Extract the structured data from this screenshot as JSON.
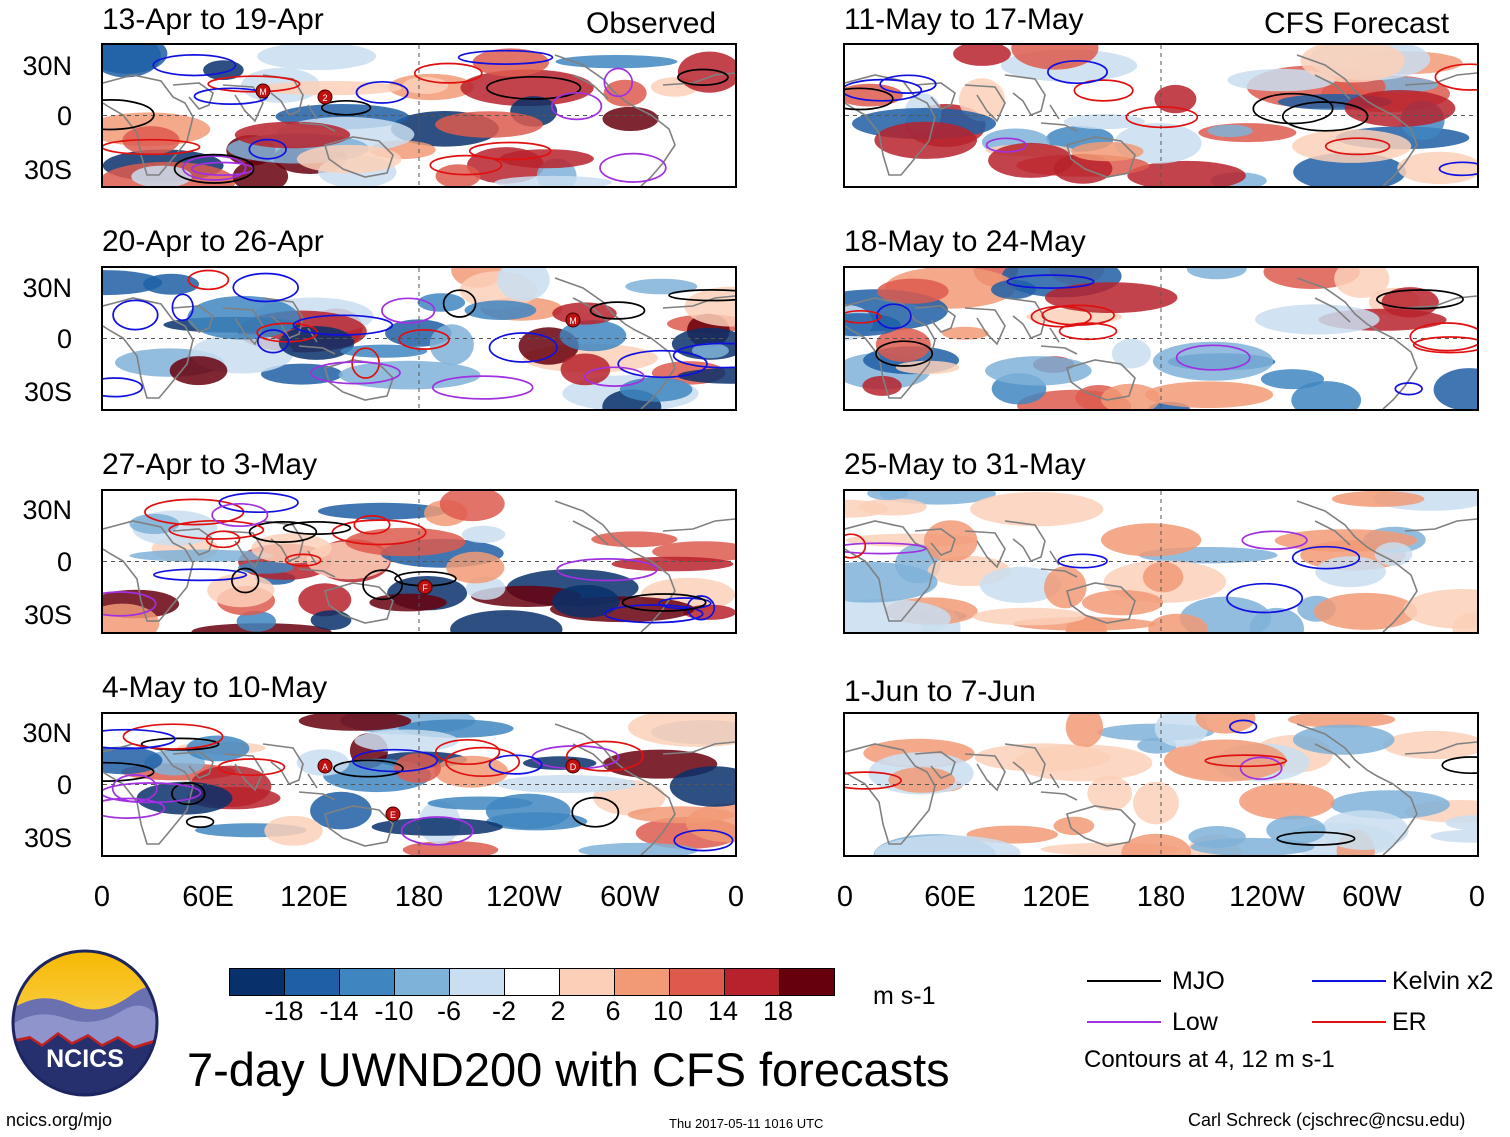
{
  "headers": {
    "left": "Observed",
    "right": "CFS Forecast"
  },
  "observed_panels": [
    {
      "title": "13-Apr to 19-Apr"
    },
    {
      "title": "20-Apr to 26-Apr"
    },
    {
      "title": "27-Apr to 3-May"
    },
    {
      "title": "4-May to 10-May"
    }
  ],
  "forecast_panels": [
    {
      "title": "11-May to 17-May"
    },
    {
      "title": "18-May to 24-May"
    },
    {
      "title": "25-May to 31-May"
    },
    {
      "title": "1-Jun to 7-Jun"
    }
  ],
  "lat_labels": [
    "30N",
    "0",
    "30S"
  ],
  "lon_labels": [
    "0",
    "60E",
    "120E",
    "180",
    "120W",
    "60W",
    "0"
  ],
  "colorbar": {
    "ticks": [
      "-18",
      "-14",
      "-10",
      "-6",
      "-2",
      "2",
      "6",
      "10",
      "14",
      "18"
    ],
    "colors": [
      "#08306b",
      "#1f5fa6",
      "#3f86c0",
      "#7fb2d8",
      "#c9def0",
      "#ffffff",
      "#fcd0b8",
      "#f19a75",
      "#dd5a4d",
      "#b7222c",
      "#67000d"
    ],
    "units": "m s-1"
  },
  "legend": {
    "items": [
      {
        "label": "MJO",
        "color": "#000000"
      },
      {
        "label": "Kelvin x2",
        "color": "#1010e0"
      },
      {
        "label": "Low",
        "color": "#a030e0"
      },
      {
        "label": "ER",
        "color": "#e01010"
      }
    ],
    "note": "Contours at 4, 12 m s-1"
  },
  "logo": {
    "text": "NCICS"
  },
  "main_title": "7-day UWND200 with CFS forecasts",
  "footer": {
    "url": "ncics.org/mjo",
    "timestamp": "Thu 2017-05-11 1016 UTC",
    "credit": "Carl Schreck (cjschrec@ncsu.edu)"
  },
  "storm_markers": [
    {
      "panel": 0,
      "labels": [
        "M",
        "2"
      ]
    },
    {
      "panel": 1,
      "labels": [
        "M"
      ]
    },
    {
      "panel": 2,
      "labels": [
        "F"
      ]
    },
    {
      "panel": 3,
      "labels": [
        "A",
        "D",
        "E"
      ]
    }
  ]
}
